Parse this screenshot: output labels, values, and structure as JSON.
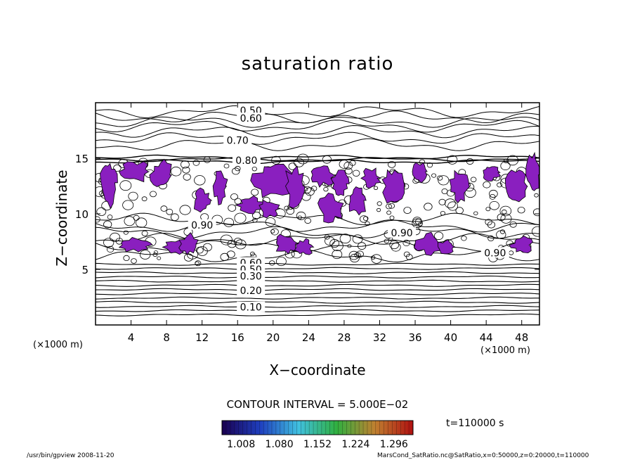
{
  "chart_data": {
    "type": "contour",
    "title": "saturation ratio",
    "xlabel": "X−coordinate",
    "ylabel": "Z−coordinate",
    "x_unit": "(×1000 m)",
    "y_unit": "(×1000 m)",
    "xlim": [
      0,
      50
    ],
    "ylim": [
      0,
      20
    ],
    "x_ticks": [
      "4",
      "8",
      "12",
      "16",
      "20",
      "24",
      "28",
      "32",
      "36",
      "40",
      "44",
      "48"
    ],
    "y_ticks": [
      "5",
      "10",
      "15"
    ],
    "contour_interval": "CONTOUR INTERVAL = 5.000E−02",
    "contour_labels": [
      {
        "text": "0.50",
        "x": 17.5,
        "z": 19.3
      },
      {
        "text": "0.60",
        "x": 17.5,
        "z": 18.6
      },
      {
        "text": "0.70",
        "x": 16.0,
        "z": 16.6
      },
      {
        "text": "0.80",
        "x": 17.0,
        "z": 14.8
      },
      {
        "text": "0.90",
        "x": 12.0,
        "z": 9.0
      },
      {
        "text": "0.90",
        "x": 34.5,
        "z": 8.3
      },
      {
        "text": "0.90",
        "x": 45.0,
        "z": 6.5
      },
      {
        "text": "0.60",
        "x": 17.5,
        "z": 5.6
      },
      {
        "text": "0.50",
        "x": 17.5,
        "z": 5.0
      },
      {
        "text": "0.30",
        "x": 17.5,
        "z": 4.4
      },
      {
        "text": "0.20",
        "x": 17.5,
        "z": 3.1
      },
      {
        "text": "0.10",
        "x": 17.5,
        "z": 1.6
      }
    ],
    "colorbar": {
      "labels": [
        "1.008",
        "1.080",
        "1.152",
        "1.224",
        "1.296"
      ],
      "min": 0.972,
      "max": 1.332
    },
    "time_label": "t=110000  s",
    "fill_color": "#8a1fbf"
  },
  "footer": {
    "left": "/usr/bin/gpview   2008-11-20",
    "right": "MarsCond_SatRatio.nc@SatRatio,x=0:50000,z=0:20000,t=110000"
  }
}
